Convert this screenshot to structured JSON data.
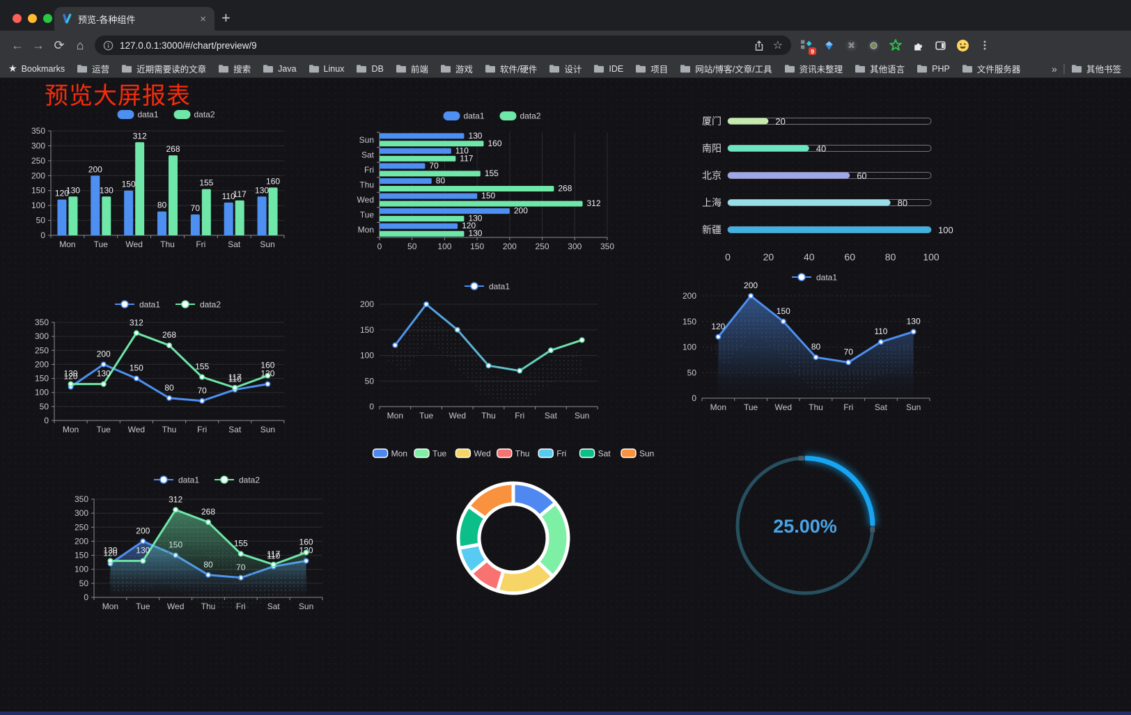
{
  "browser": {
    "tab": {
      "title": "预览-各种组件",
      "close": "×",
      "new_tab": "+"
    },
    "url": "127.0.0.1:3000/#/chart/preview/9",
    "bookmarks_label": "Bookmarks",
    "bookmarks": [
      "运营",
      "近期需要读的文章",
      "搜索",
      "Java",
      "Linux",
      "DB",
      "前端",
      "游戏",
      "软件/硬件",
      "设计",
      "IDE",
      "项目",
      "网站/博客/文章/工具",
      "资讯未整理",
      "其他语言",
      "PHP",
      "文件服务器"
    ],
    "bookmarks_overflow": "»",
    "other_bookmarks": "其他书签",
    "extension_badge": "9"
  },
  "page": {
    "title": "预览大屏报表",
    "title_color": "#f72c0c",
    "background": "#131317"
  },
  "chart_data": [
    {
      "id": "bar-vertical",
      "type": "bar",
      "categories": [
        "Mon",
        "Tue",
        "Wed",
        "Thu",
        "Fri",
        "Sat",
        "Sun"
      ],
      "series": [
        {
          "name": "data1",
          "color": "#4e8ff2",
          "values": [
            120,
            200,
            150,
            80,
            70,
            110,
            130
          ]
        },
        {
          "name": "data2",
          "color": "#6ee7a8",
          "values": [
            130,
            130,
            312,
            268,
            155,
            117,
            160
          ]
        }
      ],
      "ylim": [
        0,
        350
      ],
      "ystep": 50,
      "legend_position": "top",
      "grid": true
    },
    {
      "id": "bar-horizontal",
      "type": "bar-h",
      "categories": [
        "Mon",
        "Tue",
        "Wed",
        "Thu",
        "Fri",
        "Sat",
        "Sun"
      ],
      "series": [
        {
          "name": "data1",
          "color": "#4e8ff2",
          "values": [
            120,
            200,
            150,
            80,
            70,
            110,
            130
          ]
        },
        {
          "name": "data2",
          "color": "#6ee7a8",
          "values": [
            130,
            130,
            312,
            268,
            155,
            117,
            160
          ]
        }
      ],
      "xlim": [
        0,
        350
      ],
      "xstep": 50,
      "legend_position": "top",
      "grid": true
    },
    {
      "id": "progress",
      "type": "bar-progress",
      "xlim": [
        0,
        100
      ],
      "xticks": [
        0,
        20,
        40,
        60,
        80,
        100
      ],
      "items": [
        {
          "label": "厦门",
          "value": 20,
          "color": "#c4ebad"
        },
        {
          "label": "南阳",
          "value": 40,
          "color": "#6be6c1"
        },
        {
          "label": "北京",
          "value": 60,
          "color": "#a0a7e6"
        },
        {
          "label": "上海",
          "value": 80,
          "color": "#96dee8"
        },
        {
          "label": "新疆",
          "value": 100,
          "color": "#3fb1e3"
        }
      ]
    },
    {
      "id": "line-two",
      "type": "line",
      "categories": [
        "Mon",
        "Tue",
        "Wed",
        "Thu",
        "Fri",
        "Sat",
        "Sun"
      ],
      "series": [
        {
          "name": "data1",
          "color": "#4e8ff2",
          "values": [
            120,
            200,
            150,
            80,
            70,
            110,
            130
          ]
        },
        {
          "name": "data2",
          "color": "#6ee7a8",
          "values": [
            130,
            130,
            312,
            268,
            155,
            117,
            160
          ]
        }
      ],
      "ylim": [
        0,
        350
      ],
      "ystep": 50,
      "left_axis": true,
      "labels": true,
      "legend_position": "top",
      "grid": true
    },
    {
      "id": "line-gradient",
      "type": "line",
      "categories": [
        "Mon",
        "Tue",
        "Wed",
        "Thu",
        "Fri",
        "Sat",
        "Sun"
      ],
      "series": [
        {
          "name": "data1",
          "gradient": [
            "#4e8ff2",
            "#6ee7a8"
          ],
          "values": [
            120,
            200,
            150,
            80,
            70,
            110,
            130
          ]
        }
      ],
      "ylim": [
        0,
        200
      ],
      "ystep": 50,
      "labels": false,
      "shadow": true,
      "legend_position": "top",
      "grid": true
    },
    {
      "id": "line-area",
      "type": "line",
      "categories": [
        "Mon",
        "Tue",
        "Wed",
        "Thu",
        "Fri",
        "Sat",
        "Sun"
      ],
      "series": [
        {
          "name": "data1",
          "color": "#4e8ff2",
          "area": true,
          "values": [
            120,
            200,
            150,
            80,
            70,
            110,
            130
          ]
        }
      ],
      "ylim": [
        0,
        200
      ],
      "ystep": 50,
      "labels": true,
      "shadow": true,
      "dashed_grid": true,
      "legend_position": "top",
      "grid": true
    },
    {
      "id": "line-two-area",
      "type": "line",
      "categories": [
        "Mon",
        "Tue",
        "Wed",
        "Thu",
        "Fri",
        "Sat",
        "Sun"
      ],
      "series": [
        {
          "name": "data1",
          "color": "#4e8ff2",
          "area": true,
          "values": [
            120,
            200,
            150,
            80,
            70,
            110,
            130
          ]
        },
        {
          "name": "data2",
          "color": "#6ee7a8",
          "area": true,
          "values": [
            130,
            130,
            312,
            268,
            155,
            117,
            160
          ]
        }
      ],
      "ylim": [
        0,
        350
      ],
      "ystep": 50,
      "left_axis": true,
      "labels": true,
      "shadow": true,
      "legend_position": "top",
      "grid": true
    },
    {
      "id": "donut",
      "type": "pie",
      "legend_position": "top",
      "inner_radius_ratio": 0.62,
      "items": [
        {
          "label": "Mon",
          "value": 120,
          "color": "#5088f2"
        },
        {
          "label": "Tue",
          "value": 200,
          "color": "#7df0a6"
        },
        {
          "label": "Wed",
          "value": 150,
          "color": "#f6d465"
        },
        {
          "label": "Thu",
          "value": 80,
          "color": "#f87272"
        },
        {
          "label": "Fri",
          "value": 70,
          "color": "#58cbf3"
        },
        {
          "label": "Sat",
          "value": 110,
          "color": "#0cbe88"
        },
        {
          "label": "Sun",
          "value": 130,
          "color": "#f8923e"
        }
      ]
    },
    {
      "id": "gauge",
      "type": "gauge",
      "value": 25,
      "display": "25.00%",
      "color": "#17a4f0",
      "track_color": "#26505f",
      "text_color": "#4aa4e6"
    }
  ]
}
